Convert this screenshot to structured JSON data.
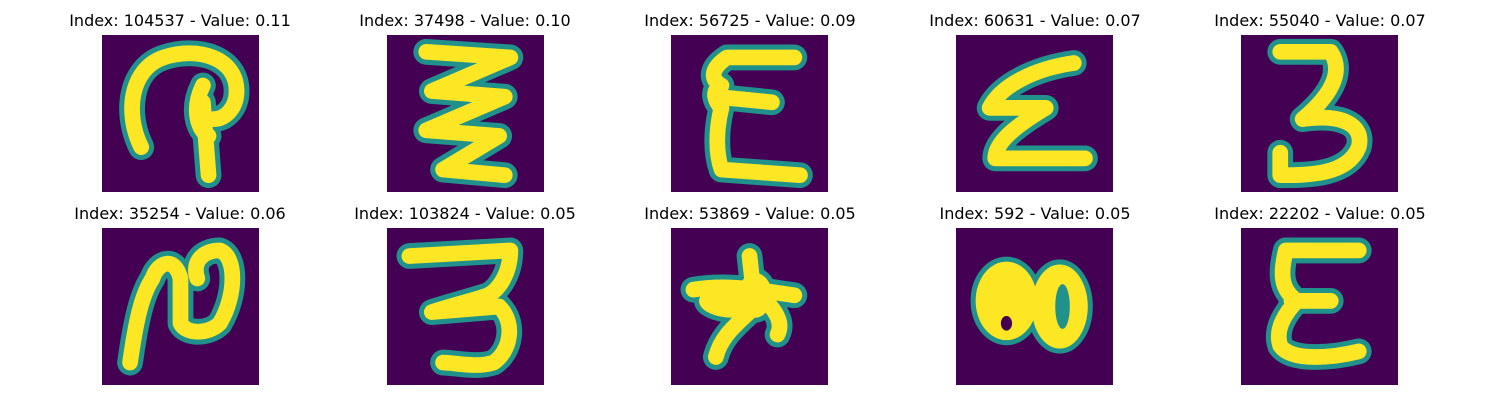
{
  "colors": {
    "background": "#440154",
    "foreground": "#fde725",
    "edge": "#21918c",
    "page": "#ffffff"
  },
  "panels": [
    {
      "index": "104537",
      "value": "0.11",
      "title": "Index: 104537 - Value: 0.11",
      "glyph": "loop-two"
    },
    {
      "index": "37498",
      "value": "0.10",
      "title": "Index: 37498 - Value: 0.10",
      "glyph": "triple-zigzag"
    },
    {
      "index": "56725",
      "value": "0.09",
      "title": "Index: 56725 - Value: 0.09",
      "glyph": "epsilon"
    },
    {
      "index": "60631",
      "value": "0.07",
      "title": "Index: 60631 - Value: 0.07",
      "glyph": "slanted-epsilon"
    },
    {
      "index": "55040",
      "value": "0.07",
      "title": "Index: 55040 - Value: 0.07",
      "glyph": "three"
    },
    {
      "index": "35254",
      "value": "0.06",
      "title": "Index: 35254 - Value: 0.06",
      "glyph": "curly-two"
    },
    {
      "index": "103824",
      "value": "0.05",
      "title": "Index: 103824 - Value: 0.05",
      "glyph": "wide-three"
    },
    {
      "index": "53869",
      "value": "0.05",
      "title": "Index: 53869 - Value: 0.05",
      "glyph": "blob"
    },
    {
      "index": "592",
      "value": "0.05",
      "title": "Index: 592 - Value: 0.05",
      "glyph": "double-zero"
    },
    {
      "index": "22202",
      "value": "0.05",
      "title": "Index: 22202 - Value: 0.05",
      "glyph": "bold-epsilon"
    }
  ]
}
